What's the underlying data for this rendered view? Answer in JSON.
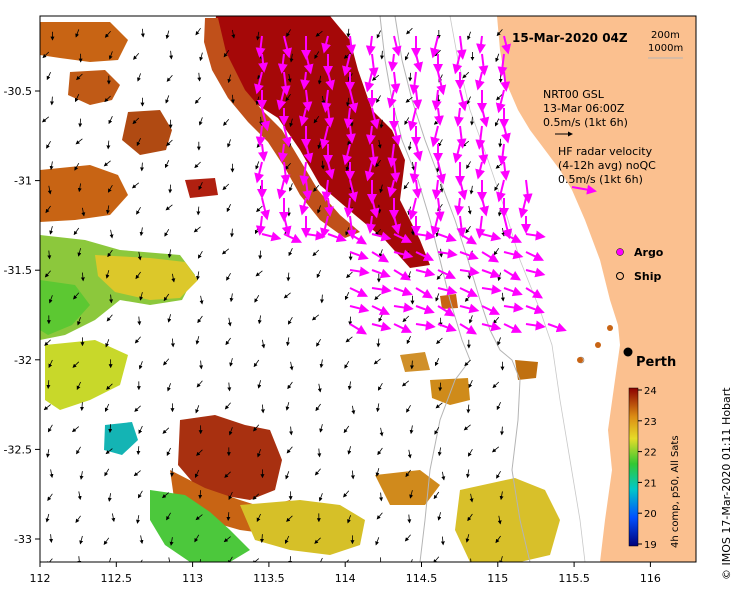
{
  "title": "15-Mar-2020 04Z",
  "contours": {
    "c200": "200m",
    "c1000": "1000m"
  },
  "x_ticks": [
    "112",
    "112.5",
    "113",
    "113.5",
    "114",
    "114.5",
    "115",
    "115.5",
    "116"
  ],
  "y_ticks": [
    "-30.5",
    "-31",
    "-31.5",
    "-32",
    "-32.5",
    "-33"
  ],
  "legend": {
    "nrt_line1": "NRT00 GSL",
    "nrt_line2": "13-Mar 06:00Z",
    "nrt_line3": "0.5m/s (1kt 6h)",
    "hf_line1": "HF radar velocity",
    "hf_line2": "(4-12h avg) noQC",
    "hf_line3": "0.5m/s (1kt 6h)",
    "argo": "Argo",
    "ship": "Ship"
  },
  "city": "Perth",
  "colorbar": {
    "ticks": [
      "24",
      "23",
      "22",
      "21",
      "20",
      "19"
    ],
    "label": "4h comp, p50, All Sats"
  },
  "credit": "© IMOS 17-Mar-2020 01:11 Hobart",
  "colors": {
    "land": "#fbc08f",
    "hf_vector": "#ff00ff",
    "sst_hot": "#a50808",
    "sst_warm": "#c86414",
    "sst_mid": "#d6a020",
    "sst_yellow": "#e6d228",
    "sst_green": "#5cc832",
    "sst_cool": "#14b4b4"
  }
}
